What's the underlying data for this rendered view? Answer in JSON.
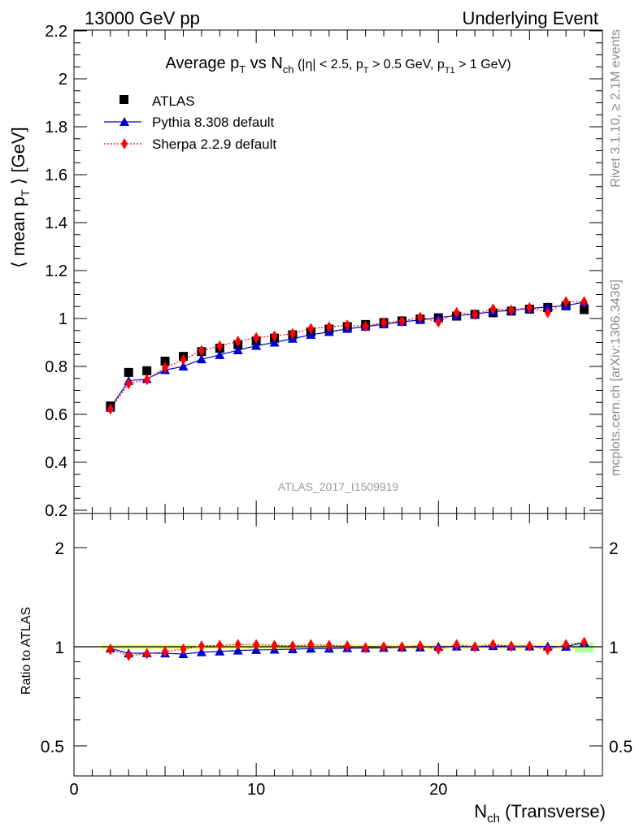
{
  "header": {
    "left": "13000 GeV pp",
    "right": "Underlying Event"
  },
  "side_labels": {
    "rivet": "Rivet 3.1.10, ≥ 2.1M events",
    "mcplots": "mcplots.cern.ch [arXiv:1306.3436]"
  },
  "colors": {
    "atlas": "#000000",
    "pythia": "#0000cc",
    "sherpa": "#ff0000",
    "band_yellow": "#ffff66",
    "band_green": "#b3ff99"
  },
  "chart_data": [
    {
      "type": "scatter",
      "title": "Average pT vs Nch (|η| < 2.5, pT > 0.5 GeV, pT1 > 1 GeV)",
      "title_parts": {
        "t1": "Average p",
        "t1s": "T",
        "t2": " vs N",
        "t2s": "ch",
        "t3": " (|η| < 2.5, p",
        "t3s": "T",
        "t4": " > 0.5 GeV, p",
        "t4s": "T1",
        "t5": " > 1 GeV)"
      },
      "ylabel": "⟨ mean pT ⟩ [GeV]",
      "ylabel_parts": {
        "a": "⟨ mean p",
        "sub": "T",
        "b": " ⟩ [GeV]"
      },
      "watermark": "ATLAS_2017_I1509919",
      "xlim": [
        0,
        29
      ],
      "ylim": [
        0.18,
        2.2
      ],
      "yticks": [
        "0.2",
        "0.4",
        "0.6",
        "0.8",
        "1",
        "1.2",
        "1.4",
        "1.6",
        "1.8",
        "2",
        "2.2"
      ],
      "legend": {
        "position": "top-left",
        "entries": [
          "ATLAS",
          "Pythia 8.308 default",
          "Sherpa 2.2.9 default"
        ]
      },
      "x": [
        2,
        3,
        4,
        5,
        6,
        7,
        8,
        9,
        10,
        11,
        12,
        13,
        14,
        15,
        16,
        17,
        18,
        19,
        20,
        21,
        22,
        23,
        24,
        25,
        26,
        27,
        28
      ],
      "series": [
        {
          "name": "ATLAS",
          "marker": "square",
          "values": [
            0.635,
            0.775,
            0.782,
            0.822,
            0.842,
            0.862,
            0.876,
            0.891,
            0.906,
            0.918,
            0.932,
            0.944,
            0.956,
            0.966,
            0.975,
            0.983,
            0.99,
            0.998,
            1.003,
            1.01,
            1.017,
            1.024,
            1.031,
            1.039,
            1.046,
            1.053,
            1.037
          ]
        },
        {
          "name": "Pythia 8.308 default",
          "marker": "triangle",
          "values": [
            0.628,
            0.74,
            0.748,
            0.785,
            0.8,
            0.83,
            0.848,
            0.868,
            0.886,
            0.9,
            0.916,
            0.932,
            0.944,
            0.957,
            0.966,
            0.976,
            0.986,
            0.994,
            1.004,
            1.012,
            1.018,
            1.029,
            1.034,
            1.042,
            1.048,
            1.054,
            1.068
          ]
        },
        {
          "name": "Sherpa 2.2.9 default",
          "marker": "diamond",
          "values": [
            0.622,
            0.728,
            0.745,
            0.795,
            0.828,
            0.866,
            0.885,
            0.905,
            0.92,
            0.927,
            0.937,
            0.958,
            0.965,
            0.972,
            0.968,
            0.983,
            0.989,
            1.005,
            0.985,
            1.025,
            1.017,
            1.04,
            1.035,
            1.045,
            1.025,
            1.07,
            1.07
          ]
        }
      ]
    },
    {
      "type": "scatter",
      "xlabel": "Nch (Transverse)",
      "xlabel_parts": {
        "a": "N",
        "sub": "ch",
        "b": " (Transverse)"
      },
      "ylabel": "Ratio to ATLAS",
      "xlim": [
        0,
        29
      ],
      "ylim": [
        0.35,
        2.4
      ],
      "yscale": "log",
      "yticks": [
        "0.5",
        "1",
        "2"
      ],
      "xticks": [
        "0",
        "10",
        "20"
      ],
      "x": [
        2,
        3,
        4,
        5,
        6,
        7,
        8,
        9,
        10,
        11,
        12,
        13,
        14,
        15,
        16,
        17,
        18,
        19,
        20,
        21,
        22,
        23,
        24,
        25,
        26,
        27,
        28
      ],
      "series": [
        {
          "name": "Pythia 8.308 default",
          "values": [
            0.989,
            0.955,
            0.957,
            0.955,
            0.95,
            0.963,
            0.968,
            0.974,
            0.978,
            0.98,
            0.983,
            0.987,
            0.987,
            0.991,
            0.991,
            0.993,
            0.996,
            0.996,
            1.001,
            1.002,
            1.001,
            1.005,
            1.003,
            1.003,
            1.002,
            1.001,
            1.03
          ]
        },
        {
          "name": "Sherpa 2.2.9 default",
          "values": [
            0.98,
            0.94,
            0.953,
            0.967,
            0.983,
            1.005,
            1.01,
            1.016,
            1.015,
            1.01,
            1.005,
            1.015,
            1.009,
            1.006,
            0.993,
            1.0,
            0.999,
            1.007,
            0.982,
            1.015,
            1.0,
            1.016,
            1.004,
            1.006,
            0.98,
            1.016,
            1.032
          ]
        }
      ]
    }
  ]
}
